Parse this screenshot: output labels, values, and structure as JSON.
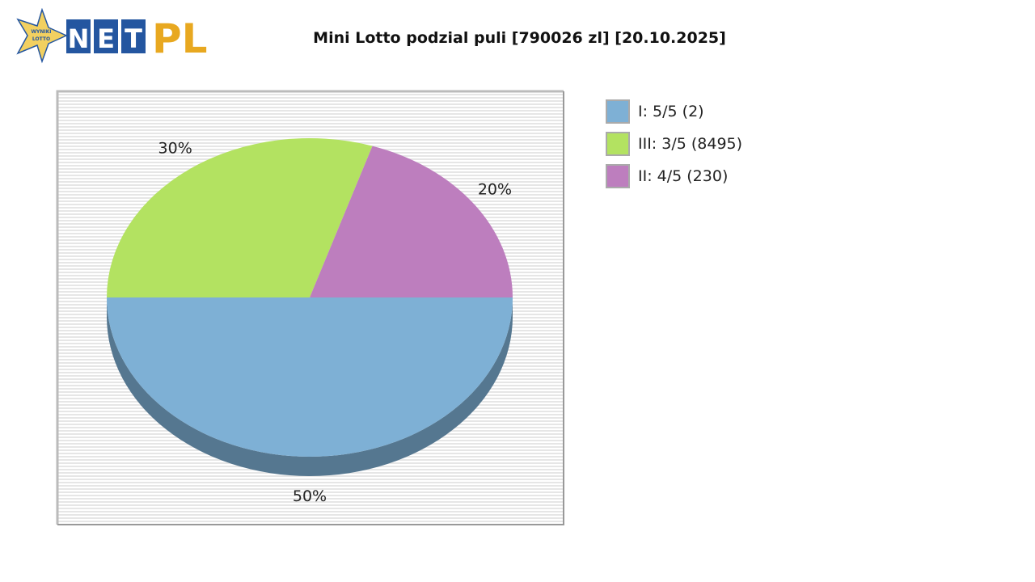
{
  "logo": {
    "text": "NET PL",
    "star_text": "WYNIKI LOTTO",
    "colors": {
      "blue": "#2456a0",
      "gold": "#e8a820",
      "star": "#f2d060"
    }
  },
  "chart_data": {
    "type": "pie",
    "title": "Mini Lotto podzial puli [790026 zl] [20.10.2025]",
    "style": "3d",
    "slices": [
      {
        "name": "I: 5/5 (2)",
        "value": 50,
        "label": "50%",
        "color": "#7eb0d5"
      },
      {
        "name": "III: 3/5 (8495)",
        "value": 30,
        "label": "30%",
        "color": "#b3e261"
      },
      {
        "name": "II: 4/5 (230)",
        "value": 20,
        "label": "20%",
        "color": "#bd7ebe"
      }
    ],
    "legend": "right",
    "background": "striped gray"
  }
}
